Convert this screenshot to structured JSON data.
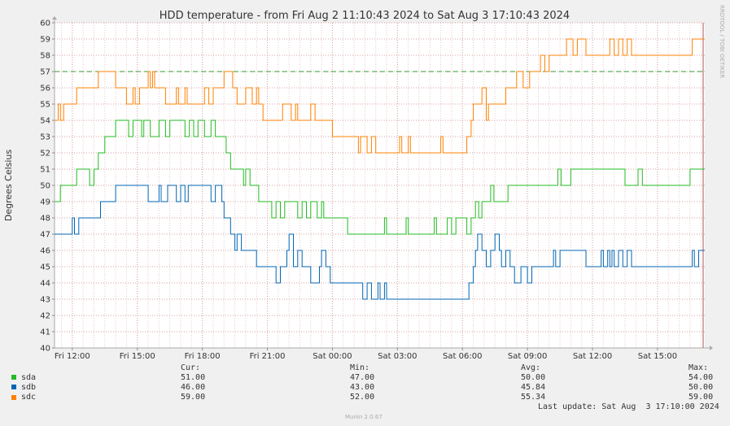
{
  "chart_data": {
    "type": "line",
    "title": "HDD temperature - from Fri Aug  2 11:10:43 2024 to Sat Aug  3 17:10:43 2024",
    "ylabel": "Degrees Celsius",
    "xlabel": "",
    "ylim": [
      40,
      60
    ],
    "yticks": [
      40,
      41,
      42,
      43,
      44,
      45,
      46,
      47,
      48,
      49,
      50,
      51,
      52,
      53,
      54,
      55,
      56,
      57,
      58,
      59,
      60
    ],
    "x_start_hour": 11.18,
    "x_end_hour": 41.18,
    "xticks": [
      {
        "hour": 12,
        "label": "Fri 12:00"
      },
      {
        "hour": 15,
        "label": "Fri 15:00"
      },
      {
        "hour": 18,
        "label": "Fri 18:00"
      },
      {
        "hour": 21,
        "label": "Fri 21:00"
      },
      {
        "hour": 24,
        "label": "Sat 00:00"
      },
      {
        "hour": 27,
        "label": "Sat 03:00"
      },
      {
        "hour": 30,
        "label": "Sat 06:00"
      },
      {
        "hour": 33,
        "label": "Sat 09:00"
      },
      {
        "hour": 36,
        "label": "Sat 12:00"
      },
      {
        "hour": 39,
        "label": "Sat 15:00"
      }
    ],
    "threshold": {
      "value": 57,
      "color": "#339933"
    },
    "grid": true,
    "side_text": "RRDTOOL / TOBI OETIKER",
    "series": [
      {
        "name": "sda",
        "color": "#22bb22",
        "points": [
          [
            11.18,
            49
          ],
          [
            11.45,
            50
          ],
          [
            12.2,
            51
          ],
          [
            12.8,
            50
          ],
          [
            13.0,
            51
          ],
          [
            13.2,
            52
          ],
          [
            13.5,
            53
          ],
          [
            14.0,
            54
          ],
          [
            14.6,
            53
          ],
          [
            14.8,
            54
          ],
          [
            15.2,
            53
          ],
          [
            15.3,
            54
          ],
          [
            15.6,
            53
          ],
          [
            16.0,
            54
          ],
          [
            16.3,
            53
          ],
          [
            16.5,
            54
          ],
          [
            17.2,
            53
          ],
          [
            17.4,
            54
          ],
          [
            17.6,
            53
          ],
          [
            17.8,
            54
          ],
          [
            18.1,
            53
          ],
          [
            18.4,
            54
          ],
          [
            18.6,
            53
          ],
          [
            19.1,
            52
          ],
          [
            19.3,
            51
          ],
          [
            19.9,
            50
          ],
          [
            20.0,
            51
          ],
          [
            20.2,
            50
          ],
          [
            20.6,
            49
          ],
          [
            21.2,
            48
          ],
          [
            21.4,
            49
          ],
          [
            21.6,
            48
          ],
          [
            21.8,
            49
          ],
          [
            22.4,
            48
          ],
          [
            22.6,
            49
          ],
          [
            22.8,
            48
          ],
          [
            23.0,
            49
          ],
          [
            23.3,
            48
          ],
          [
            23.5,
            49
          ],
          [
            23.6,
            48
          ],
          [
            24.7,
            47
          ],
          [
            26.4,
            48
          ],
          [
            26.5,
            47
          ],
          [
            27.4,
            48
          ],
          [
            27.5,
            47
          ],
          [
            28.7,
            48
          ],
          [
            28.8,
            47
          ],
          [
            29.3,
            48
          ],
          [
            29.5,
            47
          ],
          [
            29.7,
            48
          ],
          [
            30.2,
            47
          ],
          [
            30.4,
            48
          ],
          [
            30.6,
            49
          ],
          [
            30.75,
            48
          ],
          [
            30.9,
            49
          ],
          [
            31.3,
            50
          ],
          [
            31.45,
            49
          ],
          [
            31.6,
            49
          ],
          [
            32.1,
            50
          ],
          [
            34.4,
            51
          ],
          [
            34.55,
            50
          ],
          [
            35.0,
            51
          ],
          [
            37.4,
            51
          ],
          [
            37.5,
            50
          ],
          [
            38.1,
            51
          ],
          [
            38.3,
            50
          ],
          [
            39.9,
            50
          ],
          [
            40.5,
            51
          ],
          [
            41.18,
            51
          ]
        ]
      },
      {
        "name": "sdb",
        "color": "#0066b3",
        "points": [
          [
            11.18,
            47
          ],
          [
            12.0,
            48
          ],
          [
            12.1,
            47
          ],
          [
            12.3,
            48
          ],
          [
            13.3,
            49
          ],
          [
            14.0,
            50
          ],
          [
            15.5,
            49
          ],
          [
            16.0,
            50
          ],
          [
            16.1,
            49
          ],
          [
            16.4,
            50
          ],
          [
            16.8,
            49
          ],
          [
            17.0,
            50
          ],
          [
            17.2,
            49
          ],
          [
            17.35,
            50
          ],
          [
            18.4,
            49
          ],
          [
            18.6,
            50
          ],
          [
            18.9,
            49
          ],
          [
            19.0,
            48
          ],
          [
            19.3,
            47
          ],
          [
            19.5,
            46
          ],
          [
            19.6,
            47
          ],
          [
            19.8,
            46
          ],
          [
            20.5,
            45
          ],
          [
            21.4,
            44
          ],
          [
            21.6,
            45
          ],
          [
            21.9,
            46
          ],
          [
            22.0,
            47
          ],
          [
            22.2,
            45
          ],
          [
            22.4,
            46
          ],
          [
            22.6,
            45
          ],
          [
            23.0,
            44
          ],
          [
            23.4,
            45
          ],
          [
            23.5,
            46
          ],
          [
            23.7,
            45
          ],
          [
            23.9,
            44
          ],
          [
            25.4,
            43
          ],
          [
            25.6,
            44
          ],
          [
            25.8,
            43
          ],
          [
            26.1,
            44
          ],
          [
            26.2,
            43
          ],
          [
            26.4,
            44
          ],
          [
            26.5,
            43
          ],
          [
            30.3,
            44
          ],
          [
            30.5,
            45
          ],
          [
            30.6,
            46
          ],
          [
            30.7,
            47
          ],
          [
            30.9,
            46
          ],
          [
            31.1,
            45
          ],
          [
            31.3,
            46
          ],
          [
            31.5,
            47
          ],
          [
            31.7,
            46
          ],
          [
            31.8,
            45
          ],
          [
            32.0,
            46
          ],
          [
            32.2,
            45
          ],
          [
            32.4,
            44
          ],
          [
            32.7,
            45
          ],
          [
            33.0,
            44
          ],
          [
            33.2,
            45
          ],
          [
            33.9,
            45
          ],
          [
            34.2,
            46
          ],
          [
            34.3,
            45
          ],
          [
            34.5,
            46
          ],
          [
            35.7,
            45
          ],
          [
            36.3,
            45
          ],
          [
            36.4,
            46
          ],
          [
            36.5,
            45
          ],
          [
            36.7,
            46
          ],
          [
            36.8,
            45
          ],
          [
            36.9,
            46
          ],
          [
            37.0,
            45
          ],
          [
            37.2,
            46
          ],
          [
            37.4,
            45
          ],
          [
            37.6,
            46
          ],
          [
            37.8,
            45
          ],
          [
            38.2,
            45
          ],
          [
            40.6,
            46
          ],
          [
            40.7,
            45
          ],
          [
            40.9,
            46
          ],
          [
            41.18,
            46
          ]
        ]
      },
      {
        "name": "sdc",
        "color": "#ff8000",
        "points": [
          [
            11.18,
            54
          ],
          [
            11.35,
            55
          ],
          [
            11.45,
            54
          ],
          [
            11.6,
            55
          ],
          [
            12.2,
            56
          ],
          [
            13.2,
            57
          ],
          [
            14.0,
            56
          ],
          [
            14.5,
            55
          ],
          [
            14.8,
            56
          ],
          [
            14.9,
            55
          ],
          [
            15.1,
            56
          ],
          [
            15.5,
            57
          ],
          [
            15.6,
            56
          ],
          [
            15.7,
            57
          ],
          [
            15.8,
            56
          ],
          [
            16.3,
            55
          ],
          [
            16.8,
            56
          ],
          [
            16.9,
            55
          ],
          [
            17.2,
            56
          ],
          [
            17.3,
            55
          ],
          [
            18.1,
            56
          ],
          [
            18.3,
            55
          ],
          [
            18.5,
            56
          ],
          [
            19.0,
            57
          ],
          [
            19.4,
            56
          ],
          [
            19.6,
            55
          ],
          [
            20.0,
            56
          ],
          [
            20.3,
            55
          ],
          [
            20.5,
            56
          ],
          [
            20.6,
            55
          ],
          [
            20.8,
            54
          ],
          [
            21.7,
            55
          ],
          [
            22.1,
            54
          ],
          [
            22.3,
            55
          ],
          [
            22.4,
            54
          ],
          [
            23.0,
            55
          ],
          [
            23.2,
            54
          ],
          [
            24.0,
            53
          ],
          [
            25.2,
            52
          ],
          [
            25.3,
            53
          ],
          [
            25.6,
            52
          ],
          [
            25.8,
            53
          ],
          [
            26.0,
            52
          ],
          [
            27.1,
            53
          ],
          [
            27.2,
            52
          ],
          [
            27.5,
            53
          ],
          [
            27.6,
            52
          ],
          [
            29.0,
            53
          ],
          [
            29.1,
            52
          ],
          [
            30.2,
            53
          ],
          [
            30.4,
            54
          ],
          [
            30.5,
            55
          ],
          [
            30.9,
            56
          ],
          [
            31.1,
            54
          ],
          [
            31.2,
            55
          ],
          [
            31.6,
            55
          ],
          [
            32.0,
            56
          ],
          [
            32.5,
            57
          ],
          [
            32.8,
            56
          ],
          [
            33.1,
            57
          ],
          [
            33.5,
            57
          ],
          [
            33.6,
            58
          ],
          [
            33.8,
            57
          ],
          [
            34.0,
            58
          ],
          [
            34.8,
            59
          ],
          [
            35.1,
            58
          ],
          [
            35.3,
            59
          ],
          [
            35.7,
            58
          ],
          [
            36.1,
            58
          ],
          [
            36.8,
            59
          ],
          [
            37.0,
            58
          ],
          [
            37.2,
            59
          ],
          [
            37.4,
            58
          ],
          [
            37.6,
            59
          ],
          [
            37.8,
            58
          ],
          [
            38.6,
            58
          ],
          [
            40.5,
            58
          ],
          [
            40.6,
            59
          ],
          [
            41.18,
            59
          ]
        ]
      }
    ]
  },
  "legend": {
    "headers": {
      "cur": "Cur:",
      "min": "Min:",
      "avg": "Avg:",
      "max": "Max:"
    },
    "rows": [
      {
        "name": "sda",
        "color": "#22bb22",
        "cur": "51.00",
        "min": "47.00",
        "avg": "50.00",
        "max": "54.00"
      },
      {
        "name": "sdb",
        "color": "#0066b3",
        "cur": "46.00",
        "min": "43.00",
        "avg": "45.84",
        "max": "50.00"
      },
      {
        "name": "sdc",
        "color": "#ff8000",
        "cur": "59.00",
        "min": "52.00",
        "avg": "55.34",
        "max": "59.00"
      }
    ],
    "last_update": "Last update: Sat Aug  3 17:10:00 2024",
    "footer": "Munin 2.0.67"
  }
}
